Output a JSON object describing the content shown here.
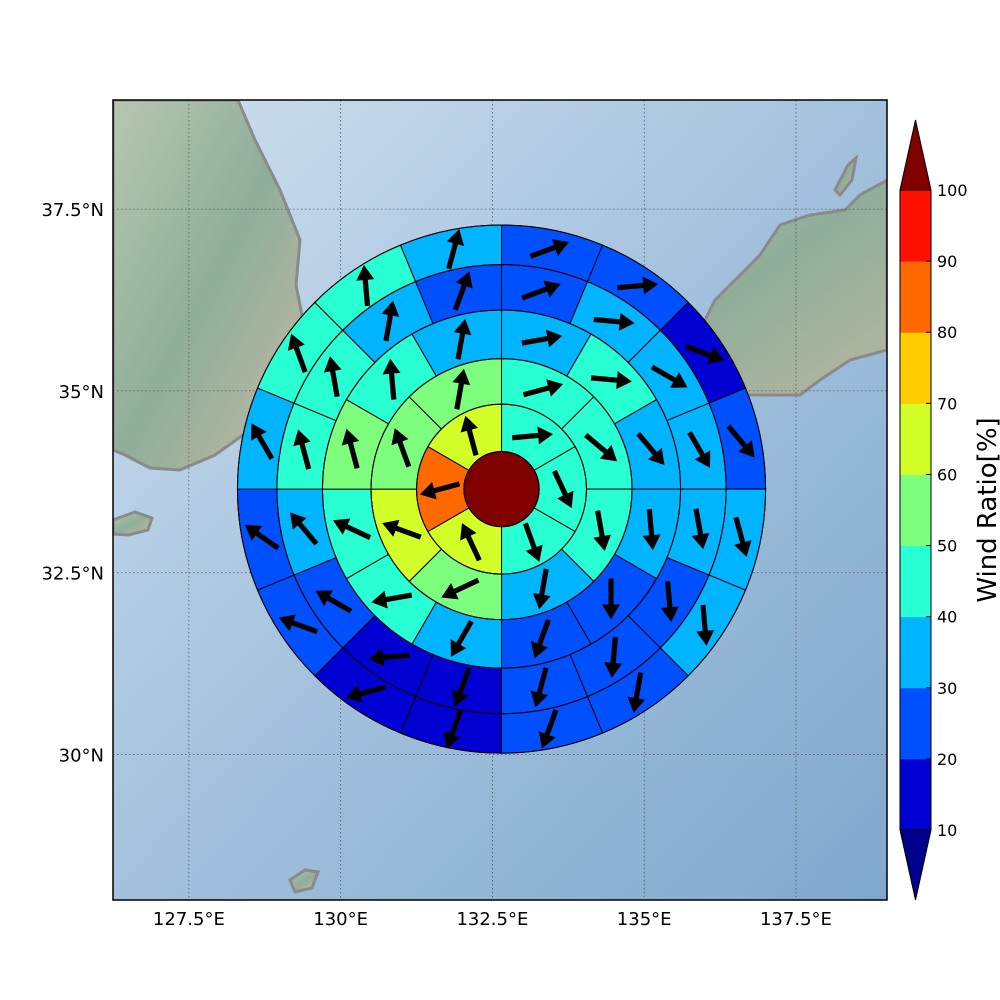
{
  "map": {
    "lon_range": [
      126.25,
      139.0
    ],
    "lat_range": [
      28.0,
      39.0
    ],
    "graticule_lons": [
      127.5,
      130.0,
      132.5,
      135.0,
      137.5
    ],
    "graticule_lats": [
      30.0,
      32.5,
      35.0,
      37.5
    ],
    "x_ticks": [
      {
        "value": 127.5,
        "label": "127.5°E"
      },
      {
        "value": 130.0,
        "label": "130°E"
      },
      {
        "value": 132.5,
        "label": "132.5°E"
      },
      {
        "value": 135.0,
        "label": "135°E"
      },
      {
        "value": 137.5,
        "label": "137.5°E"
      }
    ],
    "y_ticks": [
      {
        "value": 37.5,
        "label": "37.5°N"
      },
      {
        "value": 35.0,
        "label": "35°N"
      },
      {
        "value": 32.5,
        "label": "32.5°N"
      },
      {
        "value": 30.0,
        "label": "30°N"
      }
    ],
    "center": {
      "lon": 132.65,
      "lat": 33.65
    },
    "ring_radii_deg": [
      0.62,
      1.4,
      2.15,
      2.95,
      3.7,
      4.35
    ],
    "sectors_per_ring": [
      1,
      6,
      8,
      12,
      16,
      16
    ],
    "colors": {
      "ocean": "#a5c3de",
      "land": "#9fb8a4",
      "coast": "#8a8a8a",
      "grid": "#555555",
      "arrow": "#000000",
      "ring_stroke": "#000000"
    }
  },
  "rings": [
    {
      "ratios": [
        100
      ],
      "arrow_deg": [
        null
      ]
    },
    {
      "ratios": [
        45,
        45,
        45,
        65,
        85,
        65
      ],
      "arrow_deg": [
        85,
        155,
        160,
        335,
        255,
        345
      ]
    },
    {
      "ratios": [
        45,
        45,
        45,
        35,
        55,
        65,
        55,
        55
      ],
      "arrow_deg": [
        75,
        130,
        170,
        190,
        245,
        290,
        340,
        10
      ]
    },
    {
      "ratios": [
        35,
        45,
        35,
        35,
        25,
        25,
        35,
        45,
        45,
        55,
        45,
        35
      ],
      "arrow_deg": [
        80,
        95,
        140,
        175,
        180,
        200,
        210,
        260,
        295,
        345,
        355,
        10
      ]
    },
    {
      "ratios": [
        25,
        35,
        35,
        35,
        35,
        25,
        25,
        25,
        15,
        15,
        25,
        35,
        45,
        45,
        35,
        25
      ],
      "arrow_deg": [
        70,
        95,
        120,
        150,
        170,
        175,
        185,
        195,
        200,
        265,
        300,
        320,
        345,
        350,
        10,
        20
      ]
    },
    {
      "ratios": [
        25,
        25,
        15,
        25,
        35,
        35,
        25,
        25,
        15,
        15,
        25,
        25,
        35,
        45,
        45,
        35
      ],
      "arrow_deg": [
        70,
        85,
        110,
        140,
        165,
        175,
        190,
        200,
        200,
        255,
        290,
        305,
        330,
        340,
        355,
        15
      ]
    }
  ],
  "colorbar": {
    "label": "Wind Ratio[%]",
    "ticks": [
      "10",
      "20",
      "30",
      "40",
      "50",
      "60",
      "70",
      "80",
      "90",
      "100"
    ],
    "band_colors": [
      "#0000d2",
      "#0050ff",
      "#00b4ff",
      "#28ffd2",
      "#7dff7d",
      "#d2ff28",
      "#ffcc00",
      "#ff6900",
      "#ff1000"
    ],
    "under_color": "#00008c",
    "over_color": "#800000"
  }
}
